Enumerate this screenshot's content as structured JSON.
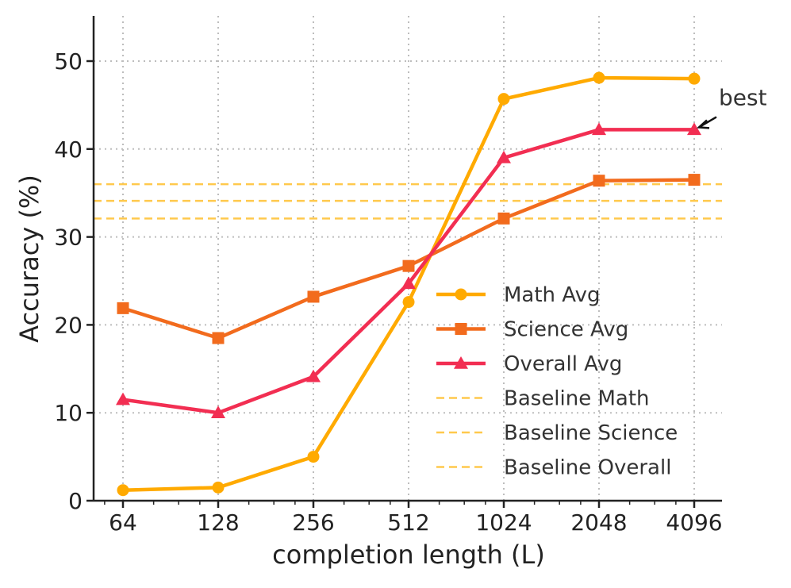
{
  "chart_data": {
    "type": "line",
    "title": "",
    "xlabel": "completion length (L)",
    "ylabel": "Accuracy (%)",
    "xscale": "log2",
    "x": [
      64,
      128,
      256,
      512,
      1024,
      2048,
      4096
    ],
    "x_tick_labels": [
      "64",
      "128",
      "256",
      "512",
      "1024",
      "2048",
      "4096"
    ],
    "ylim": [
      0,
      55
    ],
    "y_ticks": [
      0,
      10,
      20,
      30,
      40,
      50
    ],
    "y_tick_labels": [
      "0",
      "10",
      "20",
      "30",
      "40",
      "50"
    ],
    "grid": "dotted",
    "legend_position": "lower-right",
    "series": [
      {
        "name": "Math Avg",
        "values": [
          1.2,
          1.5,
          5.0,
          22.6,
          45.7,
          48.1,
          48.0
        ],
        "color": "#FFAA00",
        "marker": "circle",
        "line_style": "solid"
      },
      {
        "name": "Science Avg",
        "values": [
          21.9,
          18.5,
          23.2,
          26.7,
          32.1,
          36.4,
          36.5
        ],
        "color": "#F26B1D",
        "marker": "square",
        "line_style": "solid"
      },
      {
        "name": "Overall Avg",
        "values": [
          11.5,
          10.0,
          14.1,
          24.7,
          39.0,
          42.2,
          42.2
        ],
        "color": "#F22E52",
        "marker": "triangle",
        "line_style": "solid"
      }
    ],
    "baselines": [
      {
        "name": "Baseline Math",
        "value": 36.0,
        "color": "#FFC94D",
        "line_style": "dashed"
      },
      {
        "name": "Baseline Science",
        "value": 34.1,
        "color": "#FFC94D",
        "line_style": "dashed"
      },
      {
        "name": "Baseline Overall",
        "value": 32.1,
        "color": "#FFC94D",
        "line_style": "dashed"
      }
    ],
    "annotations": [
      {
        "text": "best",
        "series": "Overall Avg",
        "x": 4096,
        "y": 42.2
      }
    ]
  }
}
